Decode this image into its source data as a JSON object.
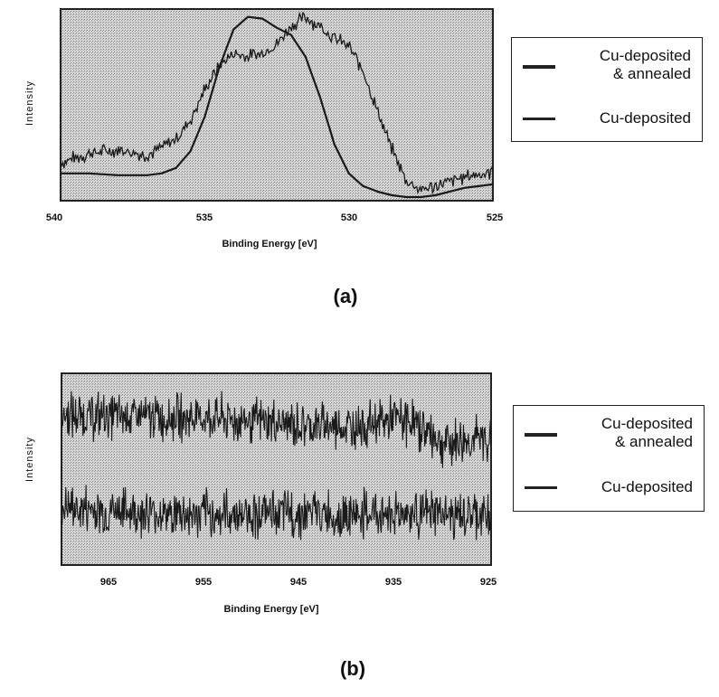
{
  "chart_data": [
    {
      "panel": "(a)",
      "type": "line",
      "title": "",
      "xlabel": "Binding Energy [eV]",
      "ylabel": "Intensity",
      "xlim": [
        540,
        525
      ],
      "x_reversed": true,
      "xticks": [
        "540",
        "535",
        "530",
        "525"
      ],
      "grid": false,
      "background": "stippled gray",
      "legend_position": "right",
      "series": [
        {
          "name": "Cu-deposited & annealed",
          "style": "smooth",
          "x": [
            540,
            539,
            538,
            537,
            536.5,
            536,
            535.5,
            535,
            534.5,
            534,
            533.5,
            533,
            532.5,
            532,
            531.5,
            531,
            530.5,
            530,
            529.5,
            529,
            528.5,
            528,
            527.5,
            527,
            526,
            525
          ],
          "values": [
            0.14,
            0.14,
            0.13,
            0.13,
            0.14,
            0.17,
            0.26,
            0.45,
            0.72,
            0.93,
            1.0,
            0.99,
            0.94,
            0.9,
            0.78,
            0.56,
            0.3,
            0.14,
            0.07,
            0.04,
            0.02,
            0.01,
            0.01,
            0.02,
            0.06,
            0.08
          ]
        },
        {
          "name": "Cu-deposited",
          "style": "noisy",
          "x": [
            540,
            539,
            538,
            537,
            536.5,
            536,
            535.5,
            535,
            534.5,
            534,
            533.5,
            533,
            532.5,
            532,
            531.5,
            531,
            530.5,
            530,
            529.5,
            529,
            528.5,
            528,
            527.5,
            527,
            526,
            525
          ],
          "values": [
            0.2,
            0.25,
            0.27,
            0.24,
            0.28,
            0.33,
            0.43,
            0.6,
            0.73,
            0.8,
            0.78,
            0.8,
            0.85,
            0.95,
            1.0,
            0.95,
            0.88,
            0.84,
            0.7,
            0.48,
            0.27,
            0.1,
            0.05,
            0.07,
            0.12,
            0.15
          ]
        }
      ]
    },
    {
      "panel": "(b)",
      "type": "line",
      "title": "",
      "xlabel": "Binding Energy [eV]",
      "ylabel": "Intensity",
      "xlim": [
        970,
        925
      ],
      "x_reversed": true,
      "xticks": [
        "965",
        "955",
        "945",
        "935",
        "925"
      ],
      "grid": false,
      "background": "stippled gray",
      "legend_position": "right",
      "series": [
        {
          "name": "Cu-deposited & annealed",
          "style": "noisy",
          "x": [
            970,
            965,
            960,
            955,
            950,
            945,
            940,
            935,
            933,
            930,
            925
          ],
          "values": [
            0.78,
            0.78,
            0.77,
            0.77,
            0.75,
            0.73,
            0.72,
            0.76,
            0.74,
            0.64,
            0.66
          ]
        },
        {
          "name": "Cu-deposited",
          "style": "noisy",
          "x": [
            970,
            965,
            960,
            955,
            950,
            945,
            940,
            935,
            930,
            925
          ],
          "values": [
            0.3,
            0.28,
            0.27,
            0.26,
            0.27,
            0.27,
            0.26,
            0.27,
            0.26,
            0.25
          ]
        }
      ]
    }
  ],
  "figure": {
    "panel_a": {
      "label": "(a)",
      "ylabel": "Intensity",
      "xlabel": "Binding Energy [eV]",
      "xticks": [
        "540",
        "535",
        "530",
        "525"
      ],
      "legend": {
        "entry1_line1": "Cu-deposited",
        "entry1_line2": "& annealed",
        "entry2": "Cu-deposited"
      }
    },
    "panel_b": {
      "label": "(b)",
      "ylabel": "Intensity",
      "xlabel": "Binding Energy [eV]",
      "xticks": [
        "965",
        "955",
        "945",
        "935",
        "925"
      ],
      "legend": {
        "entry1_line1": "Cu-deposited",
        "entry1_line2": "& annealed",
        "entry2": "Cu-deposited"
      }
    }
  },
  "colors": {
    "plot_bg": "#c8c8c8",
    "line": "#1a1a1a",
    "frame": "#222222"
  }
}
